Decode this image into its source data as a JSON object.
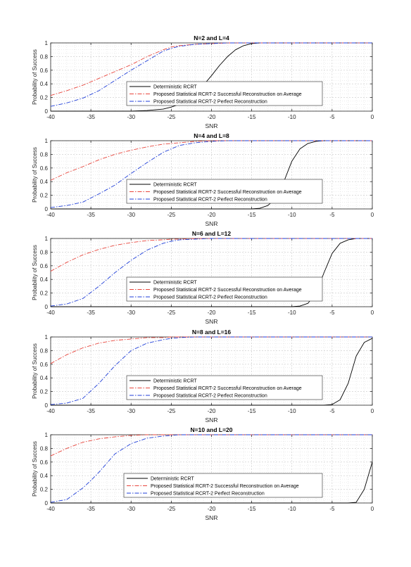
{
  "figure": {
    "background": "#ffffff"
  },
  "chart_data": [
    {
      "type": "line",
      "title": "N=2 and L=4",
      "xlabel": "SNR",
      "ylabel": "Probability of Success",
      "xlim": [
        -40,
        0
      ],
      "ylim": [
        0,
        1
      ],
      "xticks": [
        -40,
        -35,
        -30,
        -25,
        -20,
        -15,
        -10,
        -5,
        0
      ],
      "yticks": [
        0,
        0.2,
        0.4,
        0.6,
        0.8,
        1
      ],
      "grid": true,
      "legend": "center",
      "series": [
        {
          "name": "Deterministic RCRT",
          "color": "#000000",
          "style": "solid",
          "x": [
            -40,
            -35,
            -30,
            -28,
            -26,
            -25,
            -24,
            -23,
            -22,
            -21,
            -20,
            -19,
            -18,
            -17,
            -16,
            -15,
            -14,
            -12,
            -10,
            0
          ],
          "y": [
            0,
            0,
            0,
            0.01,
            0.03,
            0.06,
            0.1,
            0.15,
            0.25,
            0.38,
            0.52,
            0.67,
            0.8,
            0.9,
            0.96,
            0.99,
            1,
            1,
            1,
            1
          ]
        },
        {
          "name": "Proposed Statistical RCRT-2 Successful Reconstruction on Average",
          "color": "#e8453c",
          "style": "dashdot",
          "x": [
            -40,
            -38,
            -36,
            -34,
            -32,
            -30,
            -28,
            -26,
            -25,
            -24,
            -22,
            -20,
            -18,
            -16,
            -15,
            0
          ],
          "y": [
            0.23,
            0.3,
            0.38,
            0.48,
            0.58,
            0.68,
            0.8,
            0.9,
            0.94,
            0.96,
            0.98,
            0.99,
            1,
            1,
            1,
            1
          ]
        },
        {
          "name": "Proposed Statistical RCRT-2 Perfect Reconstruction",
          "color": "#1f3ed8",
          "style": "dashdot",
          "x": [
            -40,
            -38,
            -36,
            -34,
            -32,
            -30,
            -28,
            -26,
            -25,
            -24,
            -22,
            -20,
            -18,
            -16,
            -15,
            0
          ],
          "y": [
            0.07,
            0.12,
            0.19,
            0.3,
            0.45,
            0.6,
            0.74,
            0.88,
            0.92,
            0.95,
            0.98,
            0.99,
            1,
            1,
            1,
            1
          ]
        }
      ]
    },
    {
      "type": "line",
      "title": "N=4 and L=8",
      "xlabel": "SNR",
      "ylabel": "Probability of Success",
      "xlim": [
        -40,
        0
      ],
      "ylim": [
        0,
        1
      ],
      "xticks": [
        -40,
        -35,
        -30,
        -25,
        -20,
        -15,
        -10,
        -5,
        0
      ],
      "yticks": [
        0,
        0.2,
        0.4,
        0.6,
        0.8,
        1
      ],
      "grid": true,
      "legend": "center",
      "series": [
        {
          "name": "Deterministic RCRT",
          "color": "#000000",
          "style": "solid",
          "x": [
            -40,
            -20,
            -15,
            -14,
            -13,
            -12,
            -11,
            -10,
            -9,
            -8,
            -7,
            -6,
            -5,
            0
          ],
          "y": [
            0,
            0,
            0,
            0.01,
            0.05,
            0.15,
            0.4,
            0.7,
            0.88,
            0.96,
            0.99,
            1,
            1,
            1
          ]
        },
        {
          "name": "Proposed Statistical RCRT-2 Successful Reconstruction on Average",
          "color": "#e8453c",
          "style": "dashdot",
          "x": [
            -40,
            -38,
            -36,
            -34,
            -32,
            -30,
            -28,
            -26,
            -25,
            -24,
            -22,
            -20,
            -18,
            0
          ],
          "y": [
            0.42,
            0.53,
            0.62,
            0.72,
            0.8,
            0.86,
            0.91,
            0.95,
            0.96,
            0.97,
            0.99,
            1,
            1,
            1
          ]
        },
        {
          "name": "Proposed Statistical RCRT-2 Perfect Reconstruction",
          "color": "#1f3ed8",
          "style": "dashdot",
          "x": [
            -40,
            -38,
            -36,
            -34,
            -32,
            -30,
            -28,
            -26,
            -25,
            -24,
            -22,
            -20,
            -18,
            0
          ],
          "y": [
            0.02,
            0.05,
            0.1,
            0.22,
            0.35,
            0.52,
            0.68,
            0.83,
            0.88,
            0.93,
            0.97,
            0.99,
            1,
            1
          ]
        }
      ]
    },
    {
      "type": "line",
      "title": "N=6 and L=12",
      "xlabel": "SNR",
      "ylabel": "Probability of Success",
      "xlim": [
        -40,
        0
      ],
      "ylim": [
        0,
        1
      ],
      "xticks": [
        -40,
        -35,
        -30,
        -25,
        -20,
        -15,
        -10,
        -5,
        0
      ],
      "yticks": [
        0,
        0.2,
        0.4,
        0.6,
        0.8,
        1
      ],
      "grid": true,
      "legend": "center",
      "series": [
        {
          "name": "Deterministic RCRT",
          "color": "#000000",
          "style": "solid",
          "x": [
            -40,
            -10,
            -9,
            -8,
            -7,
            -6,
            -5,
            -4,
            -3,
            -2,
            -1,
            0
          ],
          "y": [
            0,
            0,
            0.01,
            0.05,
            0.2,
            0.5,
            0.78,
            0.93,
            0.98,
            1,
            1,
            1
          ]
        },
        {
          "name": "Proposed Statistical RCRT-2 Successful Reconstruction on Average",
          "color": "#e8453c",
          "style": "dashdot",
          "x": [
            -40,
            -38,
            -36,
            -34,
            -32,
            -30,
            -28,
            -26,
            -25,
            -24,
            -22,
            -20,
            0
          ],
          "y": [
            0.52,
            0.65,
            0.76,
            0.84,
            0.9,
            0.94,
            0.97,
            0.98,
            0.99,
            0.99,
            1,
            1,
            1
          ]
        },
        {
          "name": "Proposed Statistical RCRT-2 Perfect Reconstruction",
          "color": "#1f3ed8",
          "style": "dashdot",
          "x": [
            -40,
            -38,
            -36,
            -34,
            -32,
            -30,
            -28,
            -26,
            -25,
            -24,
            -22,
            -20,
            0
          ],
          "y": [
            0.01,
            0.04,
            0.12,
            0.3,
            0.5,
            0.68,
            0.83,
            0.93,
            0.96,
            0.98,
            0.99,
            1,
            1
          ]
        }
      ]
    },
    {
      "type": "line",
      "title": "N=8 and L=16",
      "xlabel": "SNR",
      "ylabel": "Probability of Success",
      "xlim": [
        -40,
        0
      ],
      "ylim": [
        0,
        1
      ],
      "xticks": [
        -40,
        -35,
        -30,
        -25,
        -20,
        -15,
        -10,
        -5,
        0
      ],
      "yticks": [
        0,
        0.2,
        0.4,
        0.6,
        0.8,
        1
      ],
      "grid": true,
      "legend": "center",
      "series": [
        {
          "name": "Deterministic RCRT",
          "color": "#000000",
          "style": "solid",
          "x": [
            -40,
            -6,
            -5,
            -4,
            -3,
            -2,
            -1,
            0
          ],
          "y": [
            0,
            0,
            0.01,
            0.08,
            0.32,
            0.72,
            0.92,
            0.98
          ]
        },
        {
          "name": "Proposed Statistical RCRT-2 Successful Reconstruction on Average",
          "color": "#e8453c",
          "style": "dashdot",
          "x": [
            -40,
            -38,
            -36,
            -34,
            -32,
            -30,
            -28,
            -26,
            -25,
            -24,
            -22,
            -20,
            0
          ],
          "y": [
            0.61,
            0.74,
            0.84,
            0.91,
            0.95,
            0.97,
            0.99,
            0.99,
            1,
            1,
            1,
            1,
            1
          ]
        },
        {
          "name": "Proposed Statistical RCRT-2 Perfect Reconstruction",
          "color": "#1f3ed8",
          "style": "dashdot",
          "x": [
            -40,
            -38,
            -36,
            -34,
            -32,
            -30,
            -28,
            -26,
            -25,
            -24,
            -22,
            -20,
            0
          ],
          "y": [
            0.01,
            0.03,
            0.1,
            0.32,
            0.58,
            0.8,
            0.91,
            0.96,
            0.98,
            0.99,
            1,
            1,
            1
          ]
        }
      ]
    },
    {
      "type": "line",
      "title": "N=10 and L=20",
      "xlabel": "SNR",
      "ylabel": "Probability of Success",
      "xlim": [
        -40,
        0
      ],
      "ylim": [
        0,
        1
      ],
      "xticks": [
        -40,
        -35,
        -30,
        -25,
        -20,
        -15,
        -10,
        -5,
        0
      ],
      "yticks": [
        0,
        0.2,
        0.4,
        0.6,
        0.8,
        1
      ],
      "grid": true,
      "legend": "bottom-center",
      "series": [
        {
          "name": "Deterministic RCRT",
          "color": "#000000",
          "style": "solid",
          "x": [
            -40,
            -3,
            -2,
            -1,
            0
          ],
          "y": [
            0,
            0,
            0.01,
            0.2,
            0.6
          ]
        },
        {
          "name": "Proposed Statistical RCRT-2 Successful Reconstruction on Average",
          "color": "#e8453c",
          "style": "dashdot",
          "x": [
            -40,
            -38,
            -36,
            -34,
            -32,
            -30,
            -28,
            -26,
            -25,
            0
          ],
          "y": [
            0.69,
            0.8,
            0.89,
            0.94,
            0.97,
            0.99,
            1,
            1,
            1,
            1
          ]
        },
        {
          "name": "Proposed Statistical RCRT-2 Perfect Reconstruction",
          "color": "#1f3ed8",
          "style": "dashdot",
          "x": [
            -40,
            -38,
            -36,
            -35,
            -34,
            -32,
            -30,
            -28,
            -26,
            -25,
            -24,
            0
          ],
          "y": [
            0.01,
            0.05,
            0.22,
            0.33,
            0.45,
            0.72,
            0.87,
            0.95,
            0.98,
            0.99,
            1,
            1
          ]
        }
      ]
    }
  ]
}
